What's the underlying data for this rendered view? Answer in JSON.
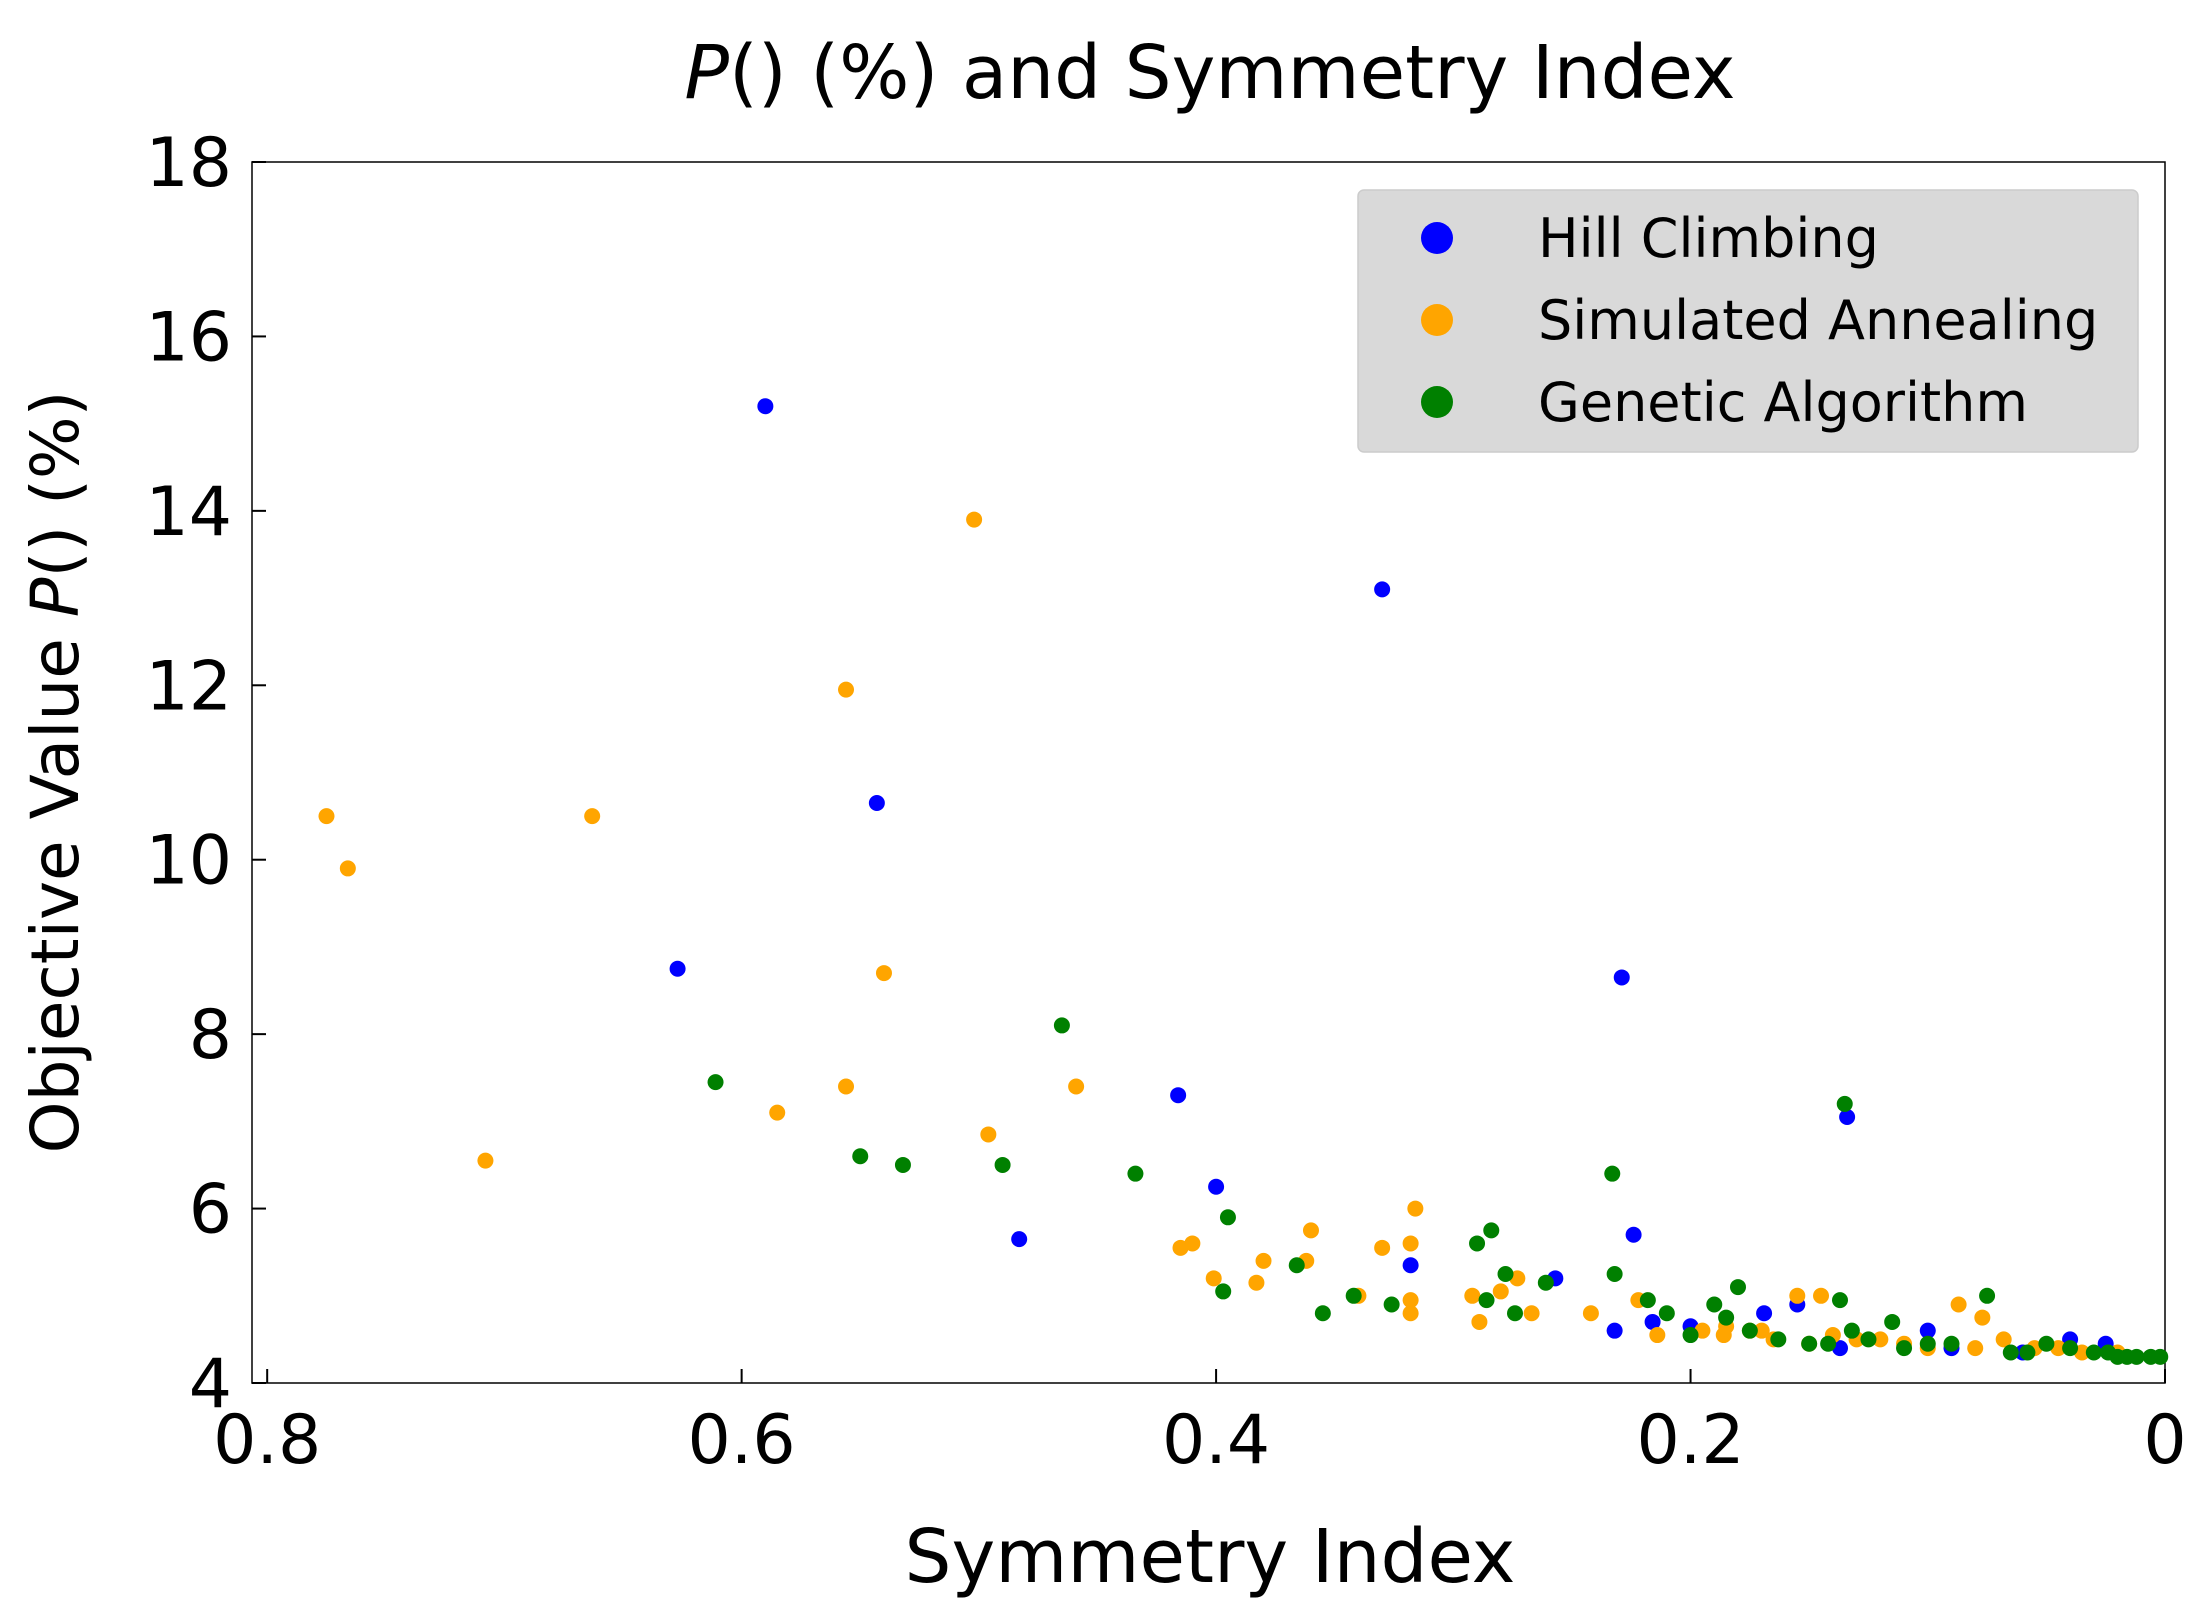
{
  "chart_data": {
    "type": "scatter",
    "title_italic": "P",
    "title_rest": "() (%) and Symmetry Index",
    "xlabel": "Symmetry Index",
    "ylabel_prefix": "Objective Value ",
    "ylabel_italic": "P",
    "ylabel_suffix": "() (%)",
    "xlim": [
      0.8,
      0.0
    ],
    "ylim": [
      4,
      18
    ],
    "x_ticks": [
      0.8,
      0.6,
      0.4,
      0.2,
      0
    ],
    "x_tick_labels": [
      "0.8",
      "0.6",
      "0.4",
      "0.2",
      "0"
    ],
    "y_ticks": [
      4,
      6,
      8,
      10,
      12,
      14,
      16,
      18
    ],
    "y_tick_labels": [
      "4",
      "6",
      "8",
      "10",
      "12",
      "14",
      "16",
      "18"
    ],
    "legend_position": "top-right",
    "series": [
      {
        "name": "Hill Climbing",
        "color": "#0000ff",
        "points": [
          [
            0.59,
            15.2
          ],
          [
            0.33,
            13.1
          ],
          [
            0.543,
            10.65
          ],
          [
            0.627,
            8.75
          ],
          [
            0.229,
            8.65
          ],
          [
            0.416,
            7.3
          ],
          [
            0.134,
            7.05
          ],
          [
            0.4,
            6.25
          ],
          [
            0.483,
            5.65
          ],
          [
            0.224,
            5.7
          ],
          [
            0.318,
            5.35
          ],
          [
            0.257,
            5.2
          ],
          [
            0.232,
            4.6
          ],
          [
            0.216,
            4.7
          ],
          [
            0.2,
            4.65
          ],
          [
            0.169,
            4.8
          ],
          [
            0.155,
            4.9
          ],
          [
            0.1,
            4.6
          ],
          [
            0.04,
            4.5
          ],
          [
            0.025,
            4.45
          ],
          [
            0.137,
            4.4
          ],
          [
            0.06,
            4.35
          ],
          [
            0.09,
            4.4
          ]
        ]
      },
      {
        "name": "Simulated Annealing",
        "color": "#ffa500",
        "points": [
          [
            0.775,
            10.5
          ],
          [
            0.766,
            9.9
          ],
          [
            0.502,
            13.9
          ],
          [
            0.556,
            11.95
          ],
          [
            0.663,
            10.5
          ],
          [
            0.54,
            8.7
          ],
          [
            0.708,
            6.55
          ],
          [
            0.556,
            7.4
          ],
          [
            0.585,
            7.1
          ],
          [
            0.459,
            7.4
          ],
          [
            0.496,
            6.85
          ],
          [
            0.415,
            5.55
          ],
          [
            0.41,
            5.6
          ],
          [
            0.36,
            5.75
          ],
          [
            0.38,
            5.4
          ],
          [
            0.362,
            5.4
          ],
          [
            0.33,
            5.55
          ],
          [
            0.318,
            5.6
          ],
          [
            0.316,
            6.0
          ],
          [
            0.401,
            5.2
          ],
          [
            0.383,
            5.15
          ],
          [
            0.34,
            5.0
          ],
          [
            0.318,
            4.95
          ],
          [
            0.318,
            4.8
          ],
          [
            0.292,
            5.0
          ],
          [
            0.28,
            5.05
          ],
          [
            0.273,
            5.2
          ],
          [
            0.289,
            4.7
          ],
          [
            0.267,
            4.8
          ],
          [
            0.242,
            4.8
          ],
          [
            0.222,
            4.95
          ],
          [
            0.214,
            4.55
          ],
          [
            0.195,
            4.6
          ],
          [
            0.185,
            4.65
          ],
          [
            0.175,
            4.6
          ],
          [
            0.165,
            4.5
          ],
          [
            0.155,
            5.0
          ],
          [
            0.145,
            5.0
          ],
          [
            0.14,
            4.55
          ],
          [
            0.13,
            4.5
          ],
          [
            0.12,
            4.5
          ],
          [
            0.11,
            4.45
          ],
          [
            0.087,
            4.9
          ],
          [
            0.077,
            4.75
          ],
          [
            0.068,
            4.5
          ],
          [
            0.055,
            4.4
          ],
          [
            0.045,
            4.4
          ],
          [
            0.035,
            4.35
          ],
          [
            0.02,
            4.35
          ],
          [
            0.1,
            4.4
          ],
          [
            0.08,
            4.4
          ],
          [
            0.15,
            4.45
          ],
          [
            0.17,
            4.6
          ],
          [
            0.186,
            4.55
          ]
        ]
      },
      {
        "name": "Genetic Algorithm",
        "color": "#008000",
        "points": [
          [
            0.465,
            8.1
          ],
          [
            0.611,
            7.45
          ],
          [
            0.135,
            7.2
          ],
          [
            0.55,
            6.6
          ],
          [
            0.532,
            6.5
          ],
          [
            0.49,
            6.5
          ],
          [
            0.434,
            6.4
          ],
          [
            0.233,
            6.4
          ],
          [
            0.395,
            5.9
          ],
          [
            0.29,
            5.6
          ],
          [
            0.284,
            5.75
          ],
          [
            0.397,
            5.05
          ],
          [
            0.366,
            5.35
          ],
          [
            0.355,
            4.8
          ],
          [
            0.342,
            5.0
          ],
          [
            0.326,
            4.9
          ],
          [
            0.278,
            5.25
          ],
          [
            0.286,
            4.95
          ],
          [
            0.274,
            4.8
          ],
          [
            0.261,
            5.15
          ],
          [
            0.232,
            5.25
          ],
          [
            0.218,
            4.95
          ],
          [
            0.21,
            4.8
          ],
          [
            0.2,
            4.55
          ],
          [
            0.19,
            4.9
          ],
          [
            0.18,
            5.1
          ],
          [
            0.175,
            4.6
          ],
          [
            0.163,
            4.5
          ],
          [
            0.15,
            4.45
          ],
          [
            0.137,
            4.95
          ],
          [
            0.132,
            4.6
          ],
          [
            0.125,
            4.5
          ],
          [
            0.115,
            4.7
          ],
          [
            0.1,
            4.45
          ],
          [
            0.09,
            4.45
          ],
          [
            0.075,
            5.0
          ],
          [
            0.065,
            4.35
          ],
          [
            0.05,
            4.45
          ],
          [
            0.04,
            4.4
          ],
          [
            0.03,
            4.35
          ],
          [
            0.02,
            4.3
          ],
          [
            0.012,
            4.3
          ],
          [
            0.006,
            4.3
          ],
          [
            0.002,
            4.3
          ],
          [
            0.142,
            4.45
          ],
          [
            0.11,
            4.4
          ],
          [
            0.058,
            4.35
          ],
          [
            0.024,
            4.35
          ],
          [
            0.016,
            4.3
          ],
          [
            0.185,
            4.75
          ]
        ]
      }
    ]
  }
}
